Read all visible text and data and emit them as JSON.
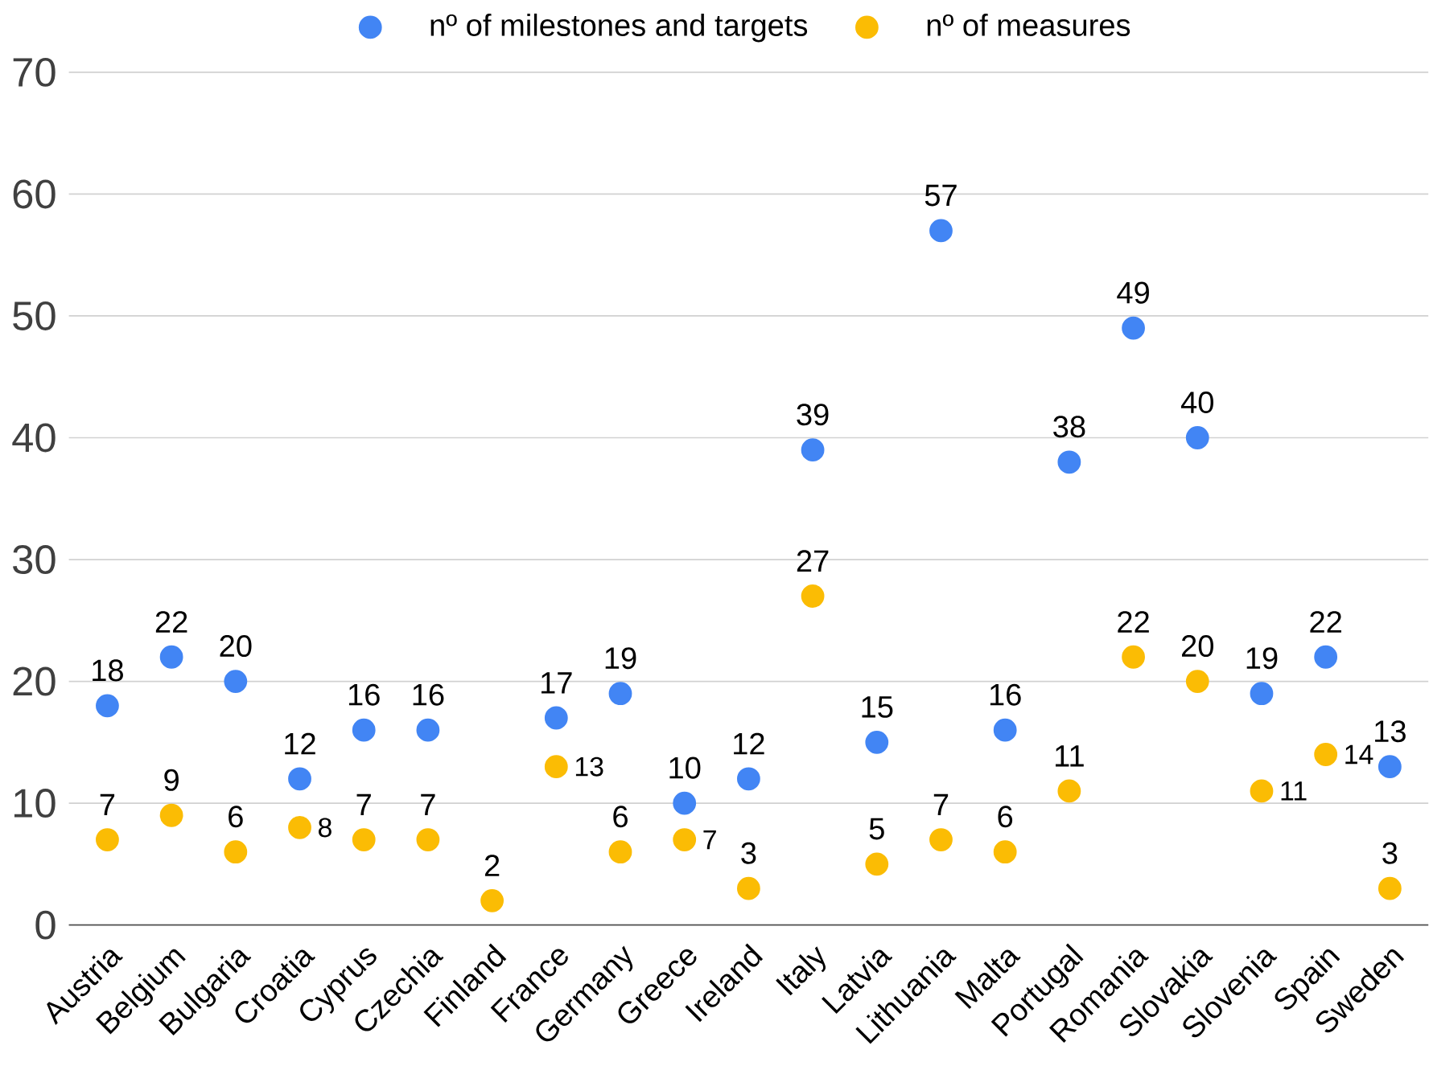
{
  "chart_data": {
    "type": "scatter",
    "categories": [
      "Austria",
      "Belgium",
      "Bulgaria",
      "Croatia",
      "Cyprus",
      "Czechia",
      "Finland",
      "France",
      "Germany",
      "Greece",
      "Ireland",
      "Italy",
      "Latvia",
      "Lithuania",
      "Malta",
      "Portugal",
      "Romania",
      "Slovakia",
      "Slovenia",
      "Spain",
      "Sweden"
    ],
    "series": [
      {
        "name": "nº of milestones and targets",
        "color": "#4285f4",
        "values": [
          18,
          22,
          20,
          12,
          16,
          16,
          null,
          17,
          19,
          10,
          12,
          39,
          15,
          57,
          16,
          38,
          49,
          40,
          19,
          22,
          13
        ]
      },
      {
        "name": "nº of measures",
        "color": "#fbbc04",
        "values": [
          7,
          9,
          6,
          8,
          7,
          7,
          2,
          13,
          6,
          7,
          3,
          27,
          5,
          7,
          6,
          11,
          22,
          20,
          11,
          14,
          3
        ]
      }
    ],
    "ylim": [
      0,
      70
    ],
    "yticks": [
      0,
      10,
      20,
      30,
      40,
      50,
      60,
      70
    ],
    "grid": "y",
    "legend": "top",
    "data_labels": true
  }
}
